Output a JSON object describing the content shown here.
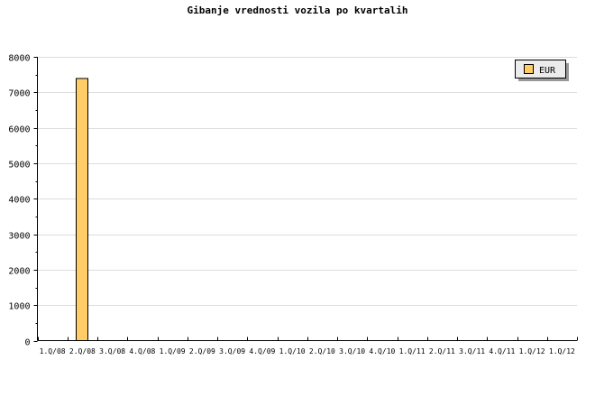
{
  "chart_data": {
    "type": "bar",
    "title": "Gibanje vrednosti vozila po kvartalih",
    "categories": [
      "1.Q/08",
      "2.Q/08",
      "3.Q/08",
      "4.Q/08",
      "1.Q/09",
      "2.Q/09",
      "3.Q/09",
      "4.Q/09",
      "1.Q/10",
      "2.Q/10",
      "3.Q/10",
      "4.Q/10",
      "1.Q/11",
      "2.Q/11",
      "3.Q/11",
      "4.Q/11",
      "1.Q/12",
      "1.Q/12"
    ],
    "series": [
      {
        "name": "EUR",
        "color": "#ffcc66",
        "values": [
          null,
          7390,
          null,
          null,
          null,
          null,
          null,
          null,
          null,
          null,
          null,
          null,
          null,
          null,
          null,
          null,
          null,
          null
        ]
      }
    ],
    "ylim": [
      0,
      8000
    ],
    "yticks": [
      0,
      1000,
      2000,
      3000,
      4000,
      5000,
      6000,
      7000,
      8000
    ],
    "grid": true,
    "legend": "top-right",
    "xlabel": "",
    "ylabel": ""
  }
}
